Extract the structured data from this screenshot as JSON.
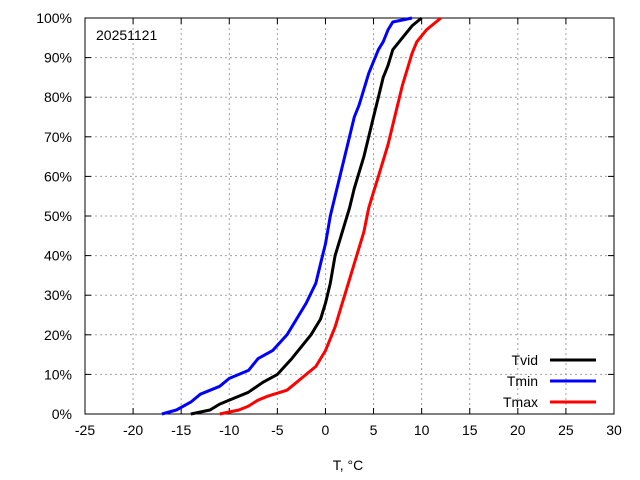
{
  "chart_data": {
    "type": "line",
    "title": "",
    "annotation": "20251121",
    "xlabel": "T, °C",
    "ylabel": "",
    "xlim": [
      -25,
      30
    ],
    "ylim": [
      0,
      100
    ],
    "xticks": [
      -25,
      -20,
      -15,
      -10,
      -5,
      0,
      5,
      10,
      15,
      20,
      25,
      30
    ],
    "yticks": [
      0,
      10,
      20,
      30,
      40,
      50,
      60,
      70,
      80,
      90,
      100
    ],
    "ytick_labels": [
      "0%",
      "10%",
      "20%",
      "30%",
      "40%",
      "50%",
      "60%",
      "70%",
      "80%",
      "90%",
      "100%"
    ],
    "grid": true,
    "legend_position": "bottom-right",
    "series": [
      {
        "name": "Tvid",
        "color": "#000000",
        "points": [
          [
            -14,
            0
          ],
          [
            -13,
            0.5
          ],
          [
            -12,
            1
          ],
          [
            -11,
            2.5
          ],
          [
            -10,
            3.5
          ],
          [
            -8,
            5.5
          ],
          [
            -6.5,
            8
          ],
          [
            -5,
            10
          ],
          [
            -3.5,
            14
          ],
          [
            -2.5,
            17
          ],
          [
            -1.5,
            20
          ],
          [
            -0.5,
            24
          ],
          [
            0,
            28
          ],
          [
            0.5,
            33
          ],
          [
            1,
            40
          ],
          [
            1.5,
            44
          ],
          [
            2,
            48
          ],
          [
            2.5,
            52
          ],
          [
            3,
            57
          ],
          [
            3.5,
            61
          ],
          [
            4,
            65
          ],
          [
            4.5,
            70
          ],
          [
            5,
            75
          ],
          [
            5.5,
            80
          ],
          [
            6,
            85
          ],
          [
            6.5,
            88
          ],
          [
            7,
            92
          ],
          [
            8,
            95
          ],
          [
            9,
            98
          ],
          [
            10,
            100
          ]
        ]
      },
      {
        "name": "Tmin",
        "color": "#0000ff",
        "points": [
          [
            -17,
            0
          ],
          [
            -15.5,
            1
          ],
          [
            -14,
            3
          ],
          [
            -13,
            5
          ],
          [
            -11,
            7
          ],
          [
            -10,
            9
          ],
          [
            -8,
            11
          ],
          [
            -7,
            14
          ],
          [
            -5.5,
            16
          ],
          [
            -4,
            20
          ],
          [
            -3,
            24
          ],
          [
            -2,
            28
          ],
          [
            -1,
            33
          ],
          [
            -0.5,
            38
          ],
          [
            0,
            43
          ],
          [
            0.5,
            50
          ],
          [
            1,
            55
          ],
          [
            1.5,
            60
          ],
          [
            2,
            65
          ],
          [
            2.5,
            70
          ],
          [
            3,
            75
          ],
          [
            3.5,
            78
          ],
          [
            4,
            82
          ],
          [
            4.5,
            86
          ],
          [
            5,
            89
          ],
          [
            5.5,
            92
          ],
          [
            6,
            94
          ],
          [
            6.5,
            97
          ],
          [
            7,
            99
          ],
          [
            9,
            100
          ]
        ]
      },
      {
        "name": "Tmax",
        "color": "#ff0000",
        "points": [
          [
            -11,
            0
          ],
          [
            -10,
            0.5
          ],
          [
            -9,
            1
          ],
          [
            -8,
            2
          ],
          [
            -7,
            3.5
          ],
          [
            -6,
            4.5
          ],
          [
            -4,
            6
          ],
          [
            -3,
            8
          ],
          [
            -2,
            10
          ],
          [
            -1,
            12
          ],
          [
            0,
            16
          ],
          [
            0.5,
            19
          ],
          [
            1,
            22
          ],
          [
            1.5,
            26
          ],
          [
            2,
            30
          ],
          [
            2.5,
            34
          ],
          [
            3,
            38
          ],
          [
            3.5,
            42
          ],
          [
            4,
            46
          ],
          [
            4.5,
            52
          ],
          [
            5,
            56
          ],
          [
            5.5,
            60
          ],
          [
            6,
            64
          ],
          [
            6.5,
            68
          ],
          [
            7,
            73
          ],
          [
            7.5,
            78
          ],
          [
            8,
            83
          ],
          [
            8.5,
            87
          ],
          [
            9,
            91
          ],
          [
            9.5,
            94
          ],
          [
            10.5,
            97
          ],
          [
            12,
            100
          ]
        ]
      }
    ]
  }
}
